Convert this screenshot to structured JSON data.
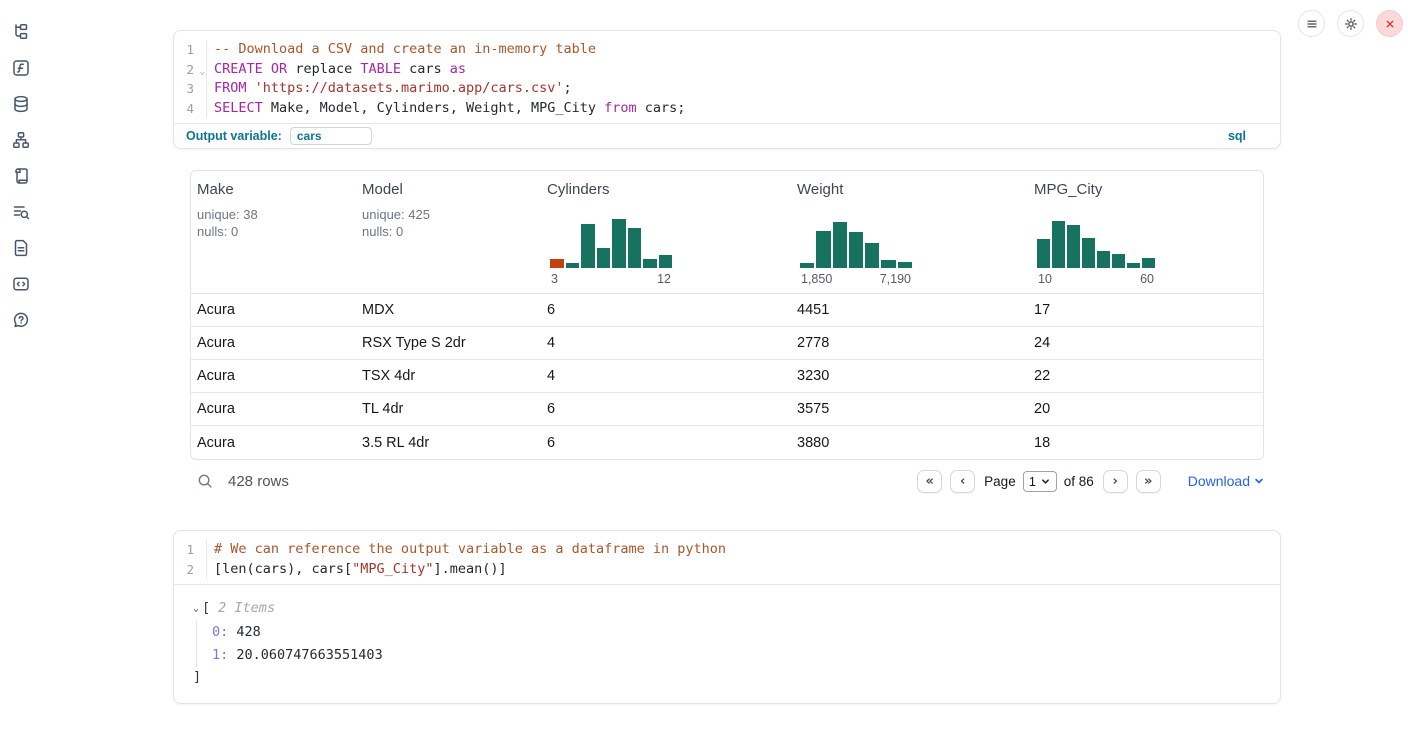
{
  "topbar": {
    "buttons": [
      "menu",
      "settings",
      "shutdown"
    ]
  },
  "sidebar": {
    "items": [
      "file-tree",
      "functions",
      "datasources",
      "dependency-graph",
      "logs",
      "scratchpad",
      "documentation",
      "snippets",
      "help"
    ]
  },
  "sql_cell": {
    "lines": [
      {
        "num": "1",
        "tokens": [
          {
            "c": "comment",
            "t": "-- Download a CSV and create an in-memory table"
          }
        ]
      },
      {
        "num": "2",
        "fold": true,
        "tokens": [
          {
            "c": "kw",
            "t": "CREATE"
          },
          {
            "c": "plain",
            "t": " "
          },
          {
            "c": "kw",
            "t": "OR"
          },
          {
            "c": "plain",
            "t": " replace "
          },
          {
            "c": "kw",
            "t": "TABLE"
          },
          {
            "c": "plain",
            "t": " cars "
          },
          {
            "c": "kw",
            "t": "as"
          }
        ]
      },
      {
        "num": "3",
        "tokens": [
          {
            "c": "kw",
            "t": "FROM"
          },
          {
            "c": "plain",
            "t": " "
          },
          {
            "c": "str",
            "t": "'https://datasets.marimo.app/cars.csv'"
          },
          {
            "c": "plain",
            "t": ";"
          }
        ]
      },
      {
        "num": "4",
        "tokens": [
          {
            "c": "kw",
            "t": "SELECT"
          },
          {
            "c": "plain",
            "t": " Make, Model, Cylinders, Weight, MPG_City "
          },
          {
            "c": "kw",
            "t": "from"
          },
          {
            "c": "plain",
            "t": " cars;"
          }
        ]
      }
    ],
    "output_variable_label": "Output variable:",
    "output_variable_value": "cars",
    "language_badge": "sql"
  },
  "table": {
    "columns": [
      {
        "label": "Make",
        "stats": [
          "unique: 38",
          "nulls: 0"
        ]
      },
      {
        "label": "Model",
        "stats": [
          "unique: 425",
          "nulls: 0"
        ]
      },
      {
        "label": "Cylinders",
        "hist": {
          "min": "3",
          "max": "12",
          "bars": [
            {
              "v": 0.18,
              "c": "orange"
            },
            {
              "v": 0.1
            },
            {
              "v": 0.85
            },
            {
              "v": 0.38
            },
            {
              "v": 0.95
            },
            {
              "v": 0.76
            },
            {
              "v": 0.18
            },
            {
              "v": 0.25
            }
          ]
        }
      },
      {
        "label": "Weight",
        "hist": {
          "min": "1,850",
          "max": "7,190",
          "bars": [
            {
              "v": 0.1
            },
            {
              "v": 0.72
            },
            {
              "v": 0.88
            },
            {
              "v": 0.7
            },
            {
              "v": 0.48
            },
            {
              "v": 0.15
            },
            {
              "v": 0.12
            }
          ]
        }
      },
      {
        "label": "MPG_City",
        "hist": {
          "min": "10",
          "max": "60",
          "bars": [
            {
              "v": 0.55
            },
            {
              "v": 0.9
            },
            {
              "v": 0.82
            },
            {
              "v": 0.58
            },
            {
              "v": 0.33
            },
            {
              "v": 0.26
            },
            {
              "v": 0.1
            },
            {
              "v": 0.2
            }
          ]
        }
      }
    ],
    "rows": [
      [
        "Acura",
        "MDX",
        "6",
        "4451",
        "17"
      ],
      [
        "Acura",
        "RSX Type S 2dr",
        "4",
        "2778",
        "24"
      ],
      [
        "Acura",
        "TSX 4dr",
        "4",
        "3230",
        "22"
      ],
      [
        "Acura",
        "TL 4dr",
        "6",
        "3575",
        "20"
      ],
      [
        "Acura",
        "3.5 RL 4dr",
        "6",
        "3880",
        "18"
      ]
    ],
    "footer": {
      "row_count": "428 rows",
      "page_label": "Page",
      "page_value": "1",
      "of_label": "of 86",
      "download_label": "Download",
      "first_page": "«",
      "prev_page": "‹",
      "next_page": "›",
      "last_page": "»"
    }
  },
  "python_cell": {
    "lines": [
      {
        "num": "1",
        "tokens": [
          {
            "c": "comment",
            "t": "# We can reference the output variable as a dataframe in python"
          }
        ]
      },
      {
        "num": "2",
        "tokens": [
          {
            "c": "plain",
            "t": "[len(cars), cars["
          },
          {
            "c": "str",
            "t": "\"MPG_City\""
          },
          {
            "c": "plain",
            "t": "].mean()]"
          }
        ]
      }
    ]
  },
  "python_output": {
    "open_bracket": "[",
    "items_label": "2 Items",
    "entries": [
      {
        "key": "0",
        "value": "428"
      },
      {
        "key": "1",
        "value": "20.060747663551403"
      }
    ],
    "close_bracket": "]"
  },
  "colors": {
    "hist_green": "#17735f",
    "hist_orange": "#c2410c",
    "accent_blue": "#0c7495",
    "download_blue": "#2563eb"
  }
}
